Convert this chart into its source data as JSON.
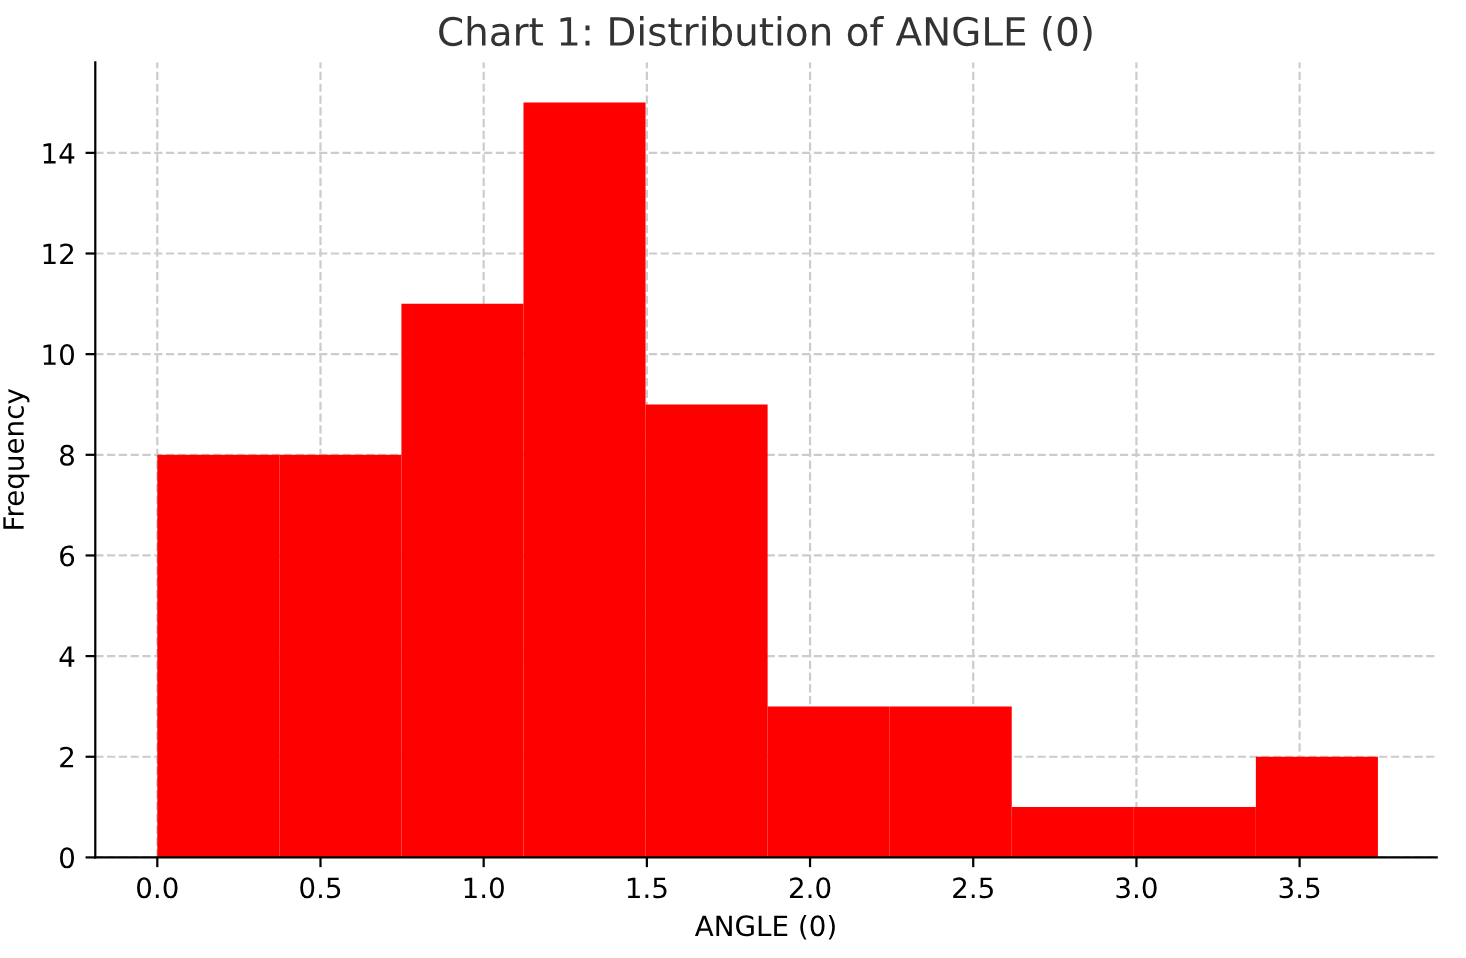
{
  "chart_data": {
    "type": "histogram",
    "title": "Chart 1: Distribution of ANGLE (0)",
    "xlabel": "ANGLE (0)",
    "ylabel": "Frequency",
    "bins": [
      0,
      0.374,
      0.748,
      1.122,
      1.496,
      1.87,
      2.244,
      2.618,
      2.992,
      3.366,
      3.74
    ],
    "values": [
      8,
      8,
      11,
      15,
      9,
      3,
      3,
      1,
      1,
      2
    ],
    "color": "#ff0000",
    "xlim": [
      -0.19,
      3.92
    ],
    "xticks": [
      {
        "value": 0,
        "label": "0.0"
      },
      0.5,
      {
        "value": 1,
        "label": "1.0"
      },
      1.5,
      {
        "value": 2,
        "label": "2.0"
      },
      2.5,
      {
        "value": 3,
        "label": "3.0"
      },
      3.5
    ],
    "ylim": [
      0,
      15.8
    ],
    "yticks": [
      0,
      2,
      4,
      6,
      8,
      10,
      12,
      14
    ],
    "grid": true
  }
}
